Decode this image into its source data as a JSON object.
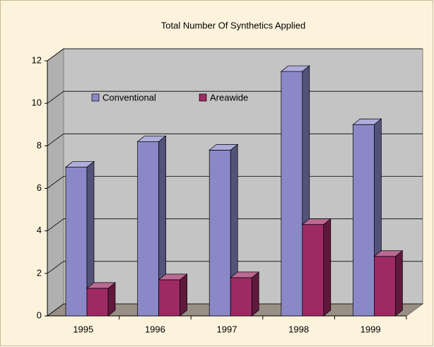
{
  "chart_data": {
    "type": "bar3d",
    "title": "Total Number Of Synthetics Applied",
    "categories": [
      "1995",
      "1996",
      "1997",
      "1998",
      "1999"
    ],
    "series": [
      {
        "name": "Conventional",
        "color": "#8b88c8",
        "values": [
          7.0,
          8.2,
          7.8,
          11.5,
          9.0
        ]
      },
      {
        "name": "Areawide",
        "color": "#9e2a64",
        "values": [
          1.3,
          1.7,
          1.8,
          4.3,
          2.8
        ]
      }
    ],
    "ylim": [
      0,
      12
    ],
    "yticks": [
      0,
      2,
      4,
      6,
      8,
      10,
      12
    ],
    "grid": true,
    "legend": "top"
  }
}
